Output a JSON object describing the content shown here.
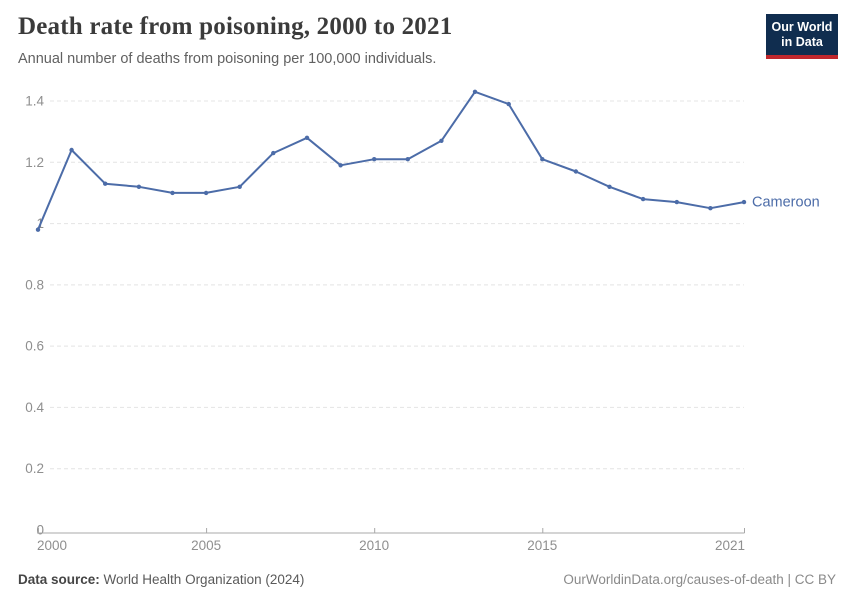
{
  "header": {
    "title": "Death rate from poisoning, 2000 to 2021",
    "subtitle": "Annual number of deaths from poisoning per 100,000 individuals.",
    "logo": {
      "line1": "Our World",
      "line2": "in Data"
    }
  },
  "footer": {
    "source_label": "Data source:",
    "source_value": " World Health Organization (2024)",
    "credit": "OurWorldinData.org/causes-of-death | CC BY"
  },
  "chart_data": {
    "type": "line",
    "title": "Death rate from poisoning, 2000 to 2021",
    "subtitle": "Annual number of deaths from poisoning per 100,000 individuals.",
    "x": [
      2000,
      2001,
      2002,
      2003,
      2004,
      2005,
      2006,
      2007,
      2008,
      2009,
      2010,
      2011,
      2012,
      2013,
      2014,
      2015,
      2016,
      2017,
      2018,
      2019,
      2020,
      2021
    ],
    "series": [
      {
        "name": "Cameroon",
        "color": "#4C6CA8",
        "values": [
          0.98,
          1.24,
          1.13,
          1.12,
          1.1,
          1.1,
          1.12,
          1.23,
          1.28,
          1.19,
          1.21,
          1.21,
          1.27,
          1.43,
          1.39,
          1.21,
          1.17,
          1.12,
          1.08,
          1.07,
          1.05,
          1.07
        ]
      }
    ],
    "xlim": [
      2000,
      2021
    ],
    "ylim": [
      0,
      1.4
    ],
    "x_ticks": [
      2000,
      2005,
      2010,
      2015,
      2021
    ],
    "y_ticks": [
      0,
      0.2,
      0.4,
      0.6,
      0.8,
      1,
      1.2,
      1.4
    ],
    "grid": "horizontal-dashed",
    "legend_position": "end-of-line-label",
    "xlabel": "",
    "ylabel": ""
  },
  "colors": {
    "line": "#4C6CA8",
    "entity_label": "#4C6CA8",
    "gridline": "#e4e4e4",
    "axis": "#a8a8a8",
    "tick_label": "#8f8f8f",
    "title": "#3b3b3b",
    "subtitle": "#616161",
    "logo_bg": "#102D4F",
    "logo_red": "#C0272D"
  }
}
